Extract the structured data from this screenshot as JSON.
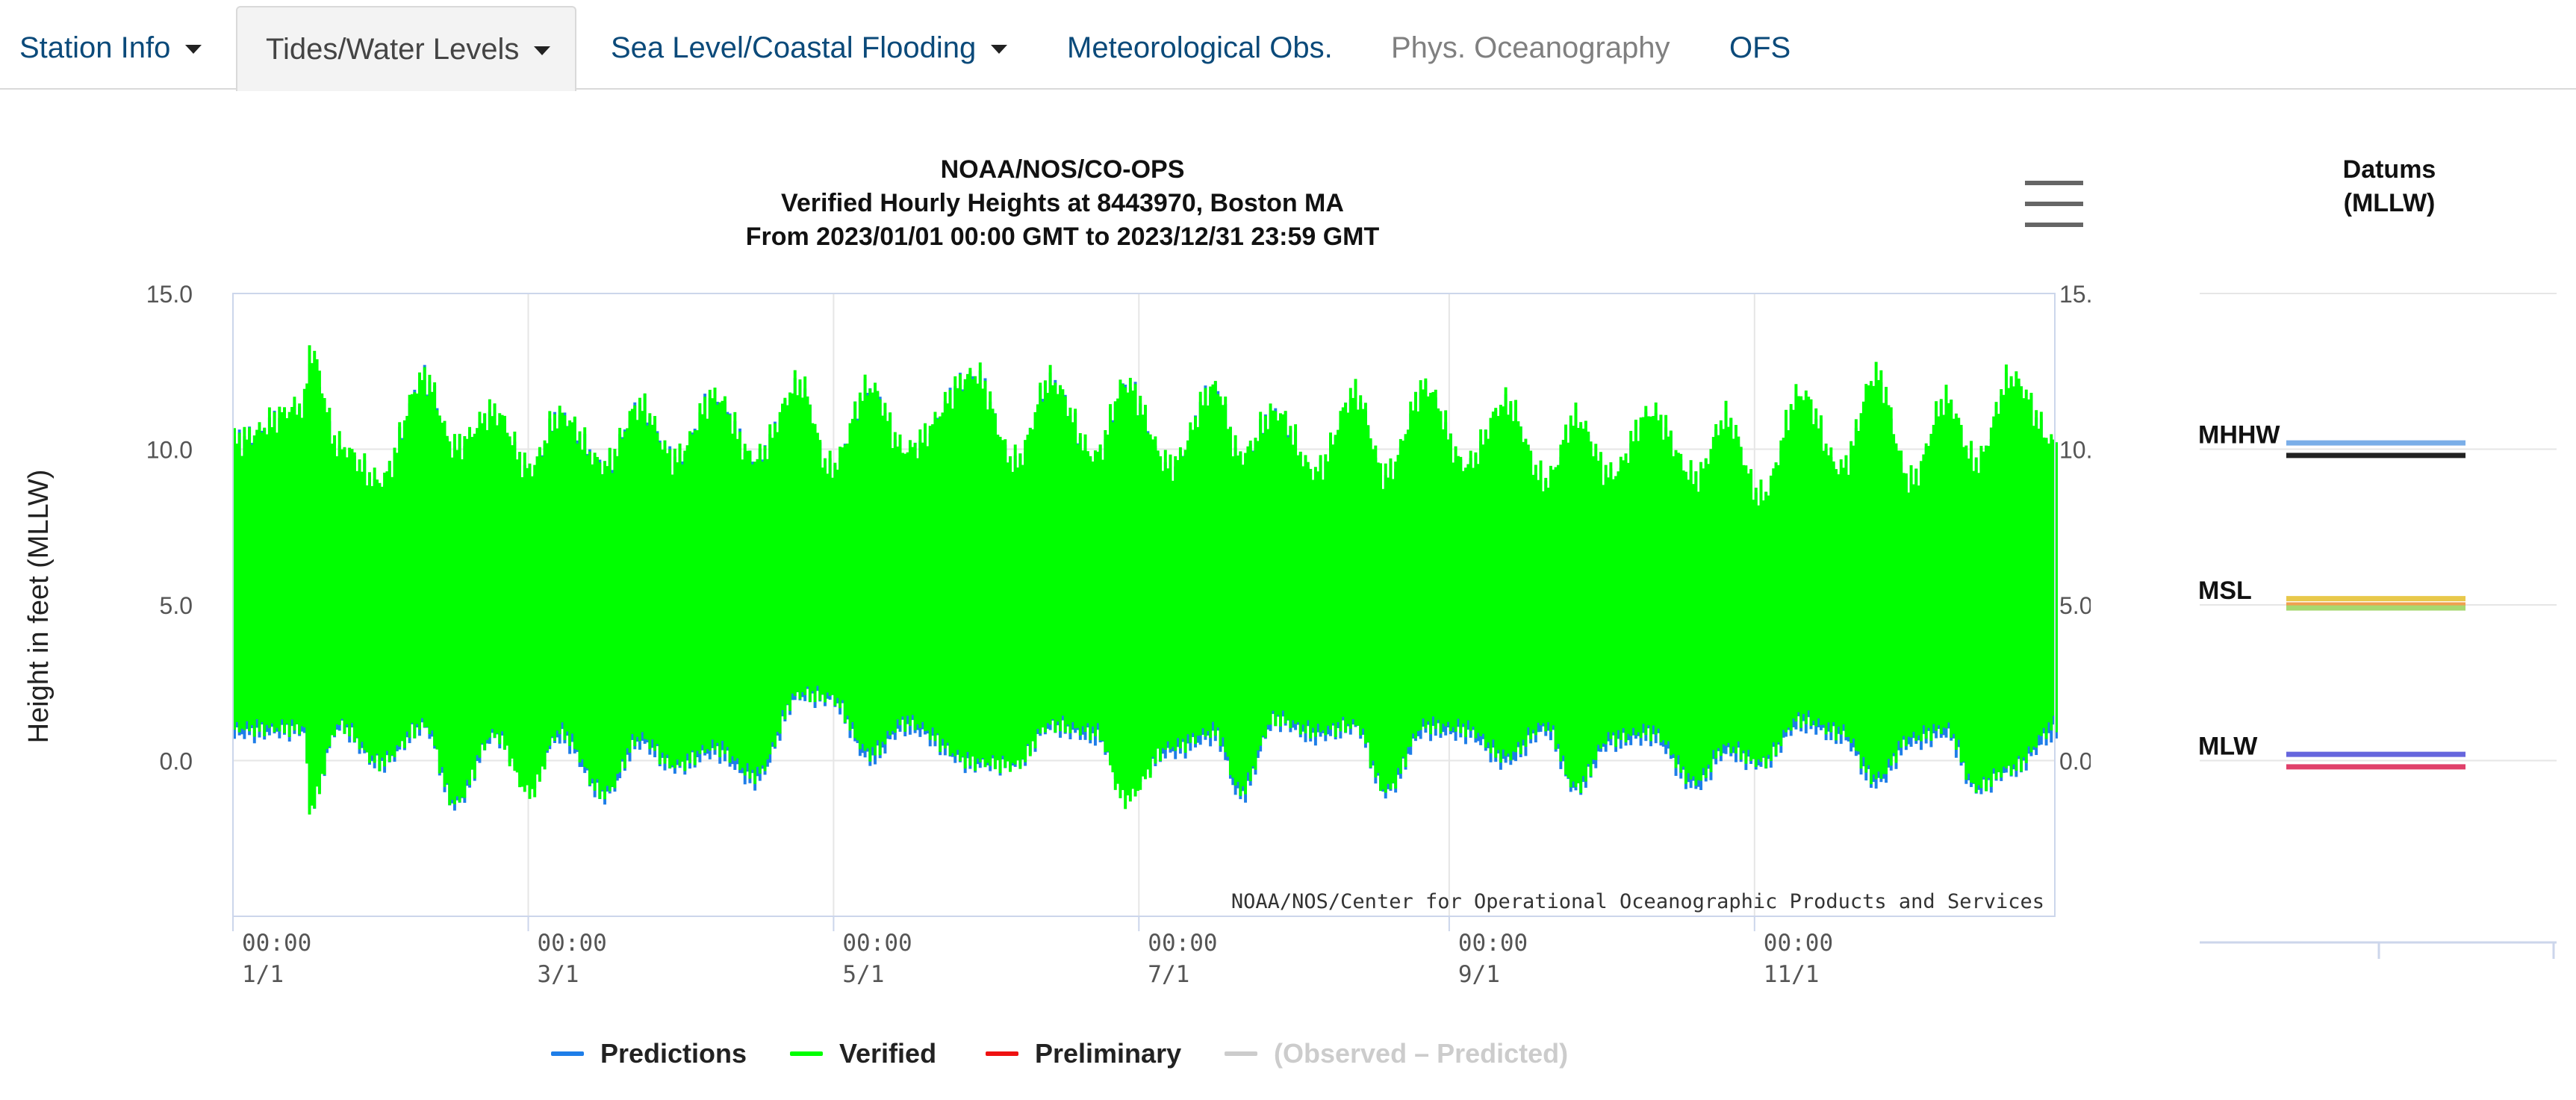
{
  "tabs": [
    {
      "label": "Station Info",
      "has_menu": true,
      "state": "normal"
    },
    {
      "label": "Tides/Water Levels",
      "has_menu": true,
      "state": "active"
    },
    {
      "label": "Sea Level/Coastal Flooding",
      "has_menu": true,
      "state": "normal"
    },
    {
      "label": "Meteorological Obs.",
      "has_menu": false,
      "state": "normal"
    },
    {
      "label": "Phys. Oceanography",
      "has_menu": false,
      "state": "disabled"
    },
    {
      "label": "OFS",
      "has_menu": false,
      "state": "normal"
    }
  ],
  "menu_icon": "hamburger-menu-icon",
  "colors": {
    "predictions": "#1e7ee8",
    "verified": "#00ff00",
    "preliminary": "#ee1111",
    "residual": "#cccccc",
    "tab_link": "#0b4a7a"
  },
  "chart_data": [
    {
      "type": "area",
      "title": "NOAA/NOS/CO-OPS",
      "subtitle_lines": [
        "Verified Hourly Heights at 8443970, Boston MA",
        "From 2023/01/01 00:00 GMT to 2023/12/31 23:59 GMT"
      ],
      "ylabel": "Height in feet (MLLW)",
      "ylim": [
        -5.0,
        15.0
      ],
      "yticks": [
        "15.0",
        "10.0",
        "5.0",
        "0.0"
      ],
      "ytick_values": [
        15.0,
        10.0,
        5.0,
        0.0
      ],
      "xlim": [
        "2023-01-01",
        "2023-12-31"
      ],
      "xticks": [
        {
          "time": "00:00",
          "date": "1/1",
          "day": 0
        },
        {
          "time": "00:00",
          "date": "3/1",
          "day": 59
        },
        {
          "time": "00:00",
          "date": "5/1",
          "day": 120
        },
        {
          "time": "00:00",
          "date": "7/1",
          "day": 181
        },
        {
          "time": "00:00",
          "date": "9/1",
          "day": 243
        },
        {
          "time": "00:00",
          "date": "11/1",
          "day": 304
        }
      ],
      "grid": true,
      "credit": "NOAA/NOS/Center for Operational Oceanographic Products and Services",
      "series": [
        {
          "name": "Predictions",
          "color": "#1e7ee8",
          "envelope": "daily min/max of hourly predicted heights",
          "x_day": [
            0,
            14,
            15,
            21,
            29,
            38,
            44,
            52,
            59,
            65,
            74,
            81,
            88,
            96,
            104,
            113,
            119,
            127,
            134,
            148,
            156,
            163,
            172,
            178,
            187,
            196,
            201,
            208,
            216,
            224,
            230,
            238,
            246,
            254,
            262,
            268,
            275,
            283,
            292,
            298,
            305,
            313,
            321,
            328,
            335,
            342,
            348,
            355,
            364
          ],
          "low": [
            0.7,
            0.8,
            -1.6,
            0.9,
            -0.3,
            0.9,
            -1.6,
            0.6,
            -0.8,
            0.6,
            -1.3,
            0.4,
            -0.4,
            0.1,
            -0.8,
            1.9,
            1.8,
            -0.1,
            0.9,
            -0.3,
            -0.3,
            0.9,
            0.6,
            -0.9,
            0.1,
            0.6,
            -1.3,
            1.1,
            0.6,
            0.9,
            -1.2,
            0.8,
            0.7,
            -0.2,
            0.8,
            -1.1,
            0.4,
            0.6,
            -1.0,
            0.1,
            -0.3,
            1.0,
            0.6,
            -0.9,
            0.4,
            0.7,
            -1.1,
            -0.5,
            0.7
          ],
          "high": [
            10.4,
            11.4,
            12.6,
            10.0,
            9.0,
            12.4,
            10.1,
            11.2,
            9.4,
            11.2,
            9.6,
            11.5,
            9.8,
            11.8,
            9.8,
            12.1,
            9.4,
            12.1,
            10.0,
            12.5,
            9.6,
            12.3,
            9.8,
            12.2,
            9.5,
            12.1,
            9.8,
            11.3,
            9.3,
            11.8,
            9.2,
            12.0,
            9.5,
            11.5,
            9.0,
            11.0,
            9.2,
            11.2,
            9.1,
            11.0,
            8.5,
            11.8,
            9.4,
            12.0,
            9.0,
            11.6,
            9.6,
            12.3,
            10.2
          ]
        },
        {
          "name": "Verified",
          "color": "#00ff00",
          "envelope": "daily min/max of hourly verified heights",
          "x_day": [
            0,
            14,
            15,
            21,
            29,
            38,
            44,
            52,
            59,
            65,
            74,
            81,
            88,
            96,
            104,
            113,
            119,
            127,
            134,
            148,
            156,
            163,
            172,
            178,
            187,
            196,
            201,
            208,
            216,
            224,
            230,
            238,
            246,
            254,
            262,
            268,
            275,
            283,
            292,
            298,
            305,
            313,
            321,
            328,
            335,
            342,
            348,
            355,
            364
          ],
          "low": [
            0.9,
            0.9,
            -1.7,
            1.0,
            -0.2,
            1.0,
            -1.5,
            0.7,
            -1.2,
            0.8,
            -1.2,
            0.6,
            -0.3,
            0.3,
            -0.6,
            2.0,
            1.9,
            0.1,
            1.1,
            -0.2,
            -0.3,
            1.0,
            0.8,
            -1.4,
            0.3,
            0.8,
            -1.1,
            1.2,
            0.8,
            1.0,
            -1.1,
            1.0,
            0.9,
            0.0,
            1.0,
            -1.0,
            0.6,
            0.8,
            -0.8,
            0.3,
            -0.2,
            1.2,
            0.8,
            -0.7,
            0.6,
            0.9,
            -1.0,
            -0.4,
            1.0
          ],
          "high": [
            10.5,
            11.6,
            13.4,
            10.3,
            9.2,
            12.5,
            10.3,
            11.4,
            9.6,
            11.3,
            9.7,
            11.6,
            9.9,
            11.9,
            9.9,
            12.3,
            9.6,
            12.2,
            10.2,
            12.6,
            9.8,
            12.4,
            10.0,
            12.3,
            9.7,
            12.2,
            10.0,
            11.4,
            9.5,
            12.0,
            9.4,
            12.2,
            9.7,
            11.7,
            9.2,
            11.2,
            9.4,
            11.4,
            9.3,
            11.2,
            8.7,
            12.0,
            9.6,
            12.6,
            9.2,
            11.8,
            9.8,
            12.5,
            10.4
          ]
        }
      ],
      "legend": {
        "position": "bottom-center",
        "items": [
          {
            "name": "Predictions",
            "color": "#1e7ee8",
            "enabled": true
          },
          {
            "name": "Verified",
            "color": "#00ff00",
            "enabled": true
          },
          {
            "name": "Preliminary",
            "color": "#ee1111",
            "enabled": true
          },
          {
            "name": "(Observed – Predicted)",
            "color": "#cccccc",
            "enabled": false
          }
        ]
      }
    },
    {
      "type": "line",
      "title": "Datums",
      "subtitle": "(MLLW)",
      "ylim": [
        -5.0,
        15.0
      ],
      "labels": [
        {
          "name": "MHHW",
          "value": 10.0
        },
        {
          "name": "MSL",
          "value": 5.0
        },
        {
          "name": "MLW",
          "value": 0.0
        }
      ],
      "lines": [
        {
          "value": 10.2,
          "color": "#7aaee8"
        },
        {
          "value": 9.8,
          "color": "#222222"
        },
        {
          "value": 5.2,
          "color": "#e8c84a"
        },
        {
          "value": 5.0,
          "color": "#f0a050"
        },
        {
          "value": 4.9,
          "color": "#a8d870"
        },
        {
          "value": 0.2,
          "color": "#6666dd"
        },
        {
          "value": -0.2,
          "color": "#e0406a"
        }
      ]
    }
  ]
}
